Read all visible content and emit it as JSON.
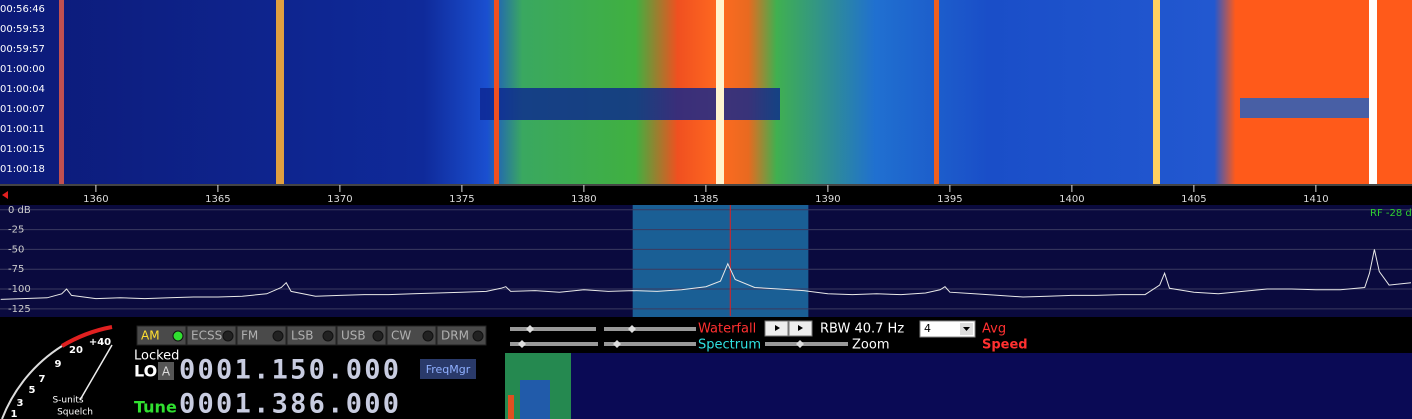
{
  "waterfall": {
    "timestamps": [
      "00:56:46",
      "00:59:53",
      "00:59:57",
      "01:00:00",
      "01:00:04",
      "01:00:07",
      "01:00:11",
      "01:00:15",
      "01:00:18"
    ]
  },
  "frequency_axis": {
    "xlim": [
      1356.07,
      1413.94
    ],
    "ticks": [
      1360,
      1365,
      1370,
      1375,
      1380,
      1385,
      1390,
      1395,
      1400,
      1405,
      1410
    ]
  },
  "spectrum": {
    "ylim": [
      -134,
      6
    ],
    "ticks": [
      {
        "value": 0,
        "label": "0 dB"
      },
      -25,
      -50,
      -75,
      -100,
      -125
    ],
    "rf_label": "RF -28 d",
    "passband": [
      1382,
      1389.2
    ],
    "tune": 1386,
    "trace": {
      "freqs": [
        1356.1,
        1357,
        1358,
        1358.6,
        1358.8,
        1359,
        1360,
        1361,
        1362,
        1363,
        1364,
        1365,
        1366,
        1367,
        1367.6,
        1367.8,
        1368,
        1369,
        1370,
        1371,
        1372,
        1373,
        1374,
        1375,
        1376,
        1376.6,
        1376.8,
        1377,
        1378,
        1379,
        1380,
        1381,
        1382,
        1383,
        1384,
        1385,
        1385.6,
        1385.9,
        1386.2,
        1387,
        1388,
        1389,
        1390,
        1391,
        1392,
        1393,
        1394,
        1394.6,
        1394.8,
        1395,
        1396,
        1397,
        1398,
        1399,
        1400,
        1401,
        1402,
        1403,
        1403.6,
        1403.8,
        1404,
        1405,
        1406,
        1407,
        1408,
        1409,
        1410,
        1411,
        1412,
        1412.2,
        1412.4,
        1412.6,
        1413,
        1413.9
      ],
      "levels": [
        -113,
        -112,
        -111,
        -106,
        -100,
        -108,
        -112,
        -111,
        -112,
        -111,
        -110,
        -110,
        -109,
        -106,
        -98,
        -92,
        -103,
        -109,
        -108,
        -107,
        -107,
        -106,
        -105,
        -104,
        -103,
        -99,
        -97,
        -103,
        -102,
        -104,
        -101,
        -103,
        -102,
        -103,
        -101,
        -97,
        -90,
        -68,
        -88,
        -98,
        -100,
        -102,
        -106,
        -107,
        -106,
        -107,
        -105,
        -101,
        -97,
        -104,
        -106,
        -108,
        -110,
        -109,
        -108,
        -108,
        -107,
        -107,
        -95,
        -80,
        -99,
        -104,
        -106,
        -103,
        -100,
        -100,
        -101,
        -101,
        -98,
        -80,
        -50,
        -78,
        -95,
        -92
      ]
    }
  },
  "controls": {
    "modes": [
      "AM",
      "ECSS",
      "FM",
      "LSB",
      "USB",
      "CW",
      "DRM"
    ],
    "active_mode_index": 0,
    "waterfall_label": "Waterfall",
    "spectrum_label": "Spectrum",
    "rbw": "RBW 40.7 Hz",
    "zoom": "Zoom",
    "avg_value": "4",
    "avg": "Avg",
    "speed": "Speed"
  },
  "receiver": {
    "status": "Locked",
    "lo_label": "LO",
    "lo_button": "A",
    "lo_frequency": "0001.150.000",
    "freq_manager": "FreqMgr",
    "tune_label": "Tune",
    "tune_frequency": "0001.386.000"
  },
  "s_meter": {
    "scale": [
      "1",
      "3",
      "5",
      "7",
      "9",
      "20",
      "+40"
    ],
    "units": "S-units",
    "squelch": "Squelch"
  }
}
